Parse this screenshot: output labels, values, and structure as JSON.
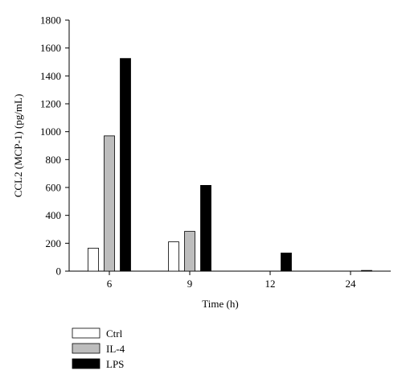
{
  "chart_data": {
    "type": "bar",
    "categories": [
      "6",
      "9",
      "12",
      "24"
    ],
    "series": [
      {
        "name": "Ctrl",
        "values": [
          165,
          210,
          0,
          0
        ],
        "color": "#ffffff"
      },
      {
        "name": "IL-4",
        "values": [
          970,
          285,
          0,
          0
        ],
        "color": "#bdbdbd"
      },
      {
        "name": "LPS",
        "values": [
          1525,
          615,
          130,
          5
        ],
        "color": "#000000"
      }
    ],
    "xlabel": "Time (h)",
    "ylabel": "CCL2 (MCP-1)  (pg/mL)",
    "ylim": [
      0,
      1800
    ],
    "yticks": [
      0,
      200,
      400,
      600,
      800,
      1000,
      1200,
      1400,
      1600,
      1800
    ],
    "grid": false,
    "legend_position": "bottom-left"
  }
}
